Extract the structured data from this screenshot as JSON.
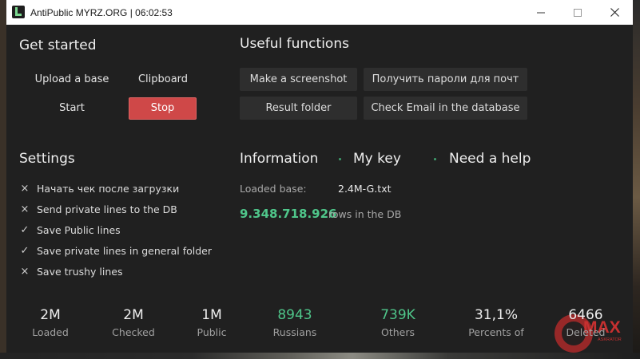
{
  "window": {
    "title": "AntiPublic MYRZ.ORG | 06:02:53",
    "minimize_icon": "minimize-icon",
    "maximize_icon": "maximize-icon",
    "close_icon": "close-icon"
  },
  "get_started": {
    "heading": "Get started",
    "upload_label": "Upload a base",
    "clipboard_label": "Clipboard",
    "start_label": "Start",
    "stop_label": "Stop"
  },
  "useful": {
    "heading": "Useful functions",
    "buttons": [
      "Make a screenshot",
      "Получить пароли для почт",
      "Result folder",
      "Check Email in the database"
    ]
  },
  "settings": {
    "heading": "Settings",
    "items": [
      {
        "label": "Начать чек после загрузки",
        "checked": false,
        "mark": "×"
      },
      {
        "label": "Send private lines to the DB",
        "checked": false,
        "mark": "×"
      },
      {
        "label": "Save Public lines",
        "checked": true,
        "mark": "✓"
      },
      {
        "label": "Save private lines in general folder",
        "checked": true,
        "mark": "✓"
      },
      {
        "label": "Save trushy lines",
        "checked": false,
        "mark": "×"
      }
    ]
  },
  "information": {
    "heading": "Information",
    "my_key": "My key",
    "need_help": "Need a help",
    "loaded_base_label": "Loaded base:",
    "loaded_base_value": "2.4M-G.txt",
    "rows_count": "9.348.718.926",
    "rows_suffix": "rows in the DB"
  },
  "stats": [
    {
      "value": "2M",
      "caption": "Loaded"
    },
    {
      "value": "2M",
      "caption": "Checked"
    },
    {
      "value": "1M",
      "caption": "Public"
    },
    {
      "value": "8943",
      "caption": "Russians"
    },
    {
      "value": "739K",
      "caption": "Others"
    },
    {
      "value": "31,1%",
      "caption": "Percents of"
    },
    {
      "value": "6466",
      "caption": "Deleted"
    }
  ],
  "watermark": {
    "text": "MAX",
    "sub": "ASKRATOR"
  },
  "colors": {
    "accent_green": "#4fc68a",
    "stop_red": "#cf4848",
    "window_bg": "#202020"
  }
}
